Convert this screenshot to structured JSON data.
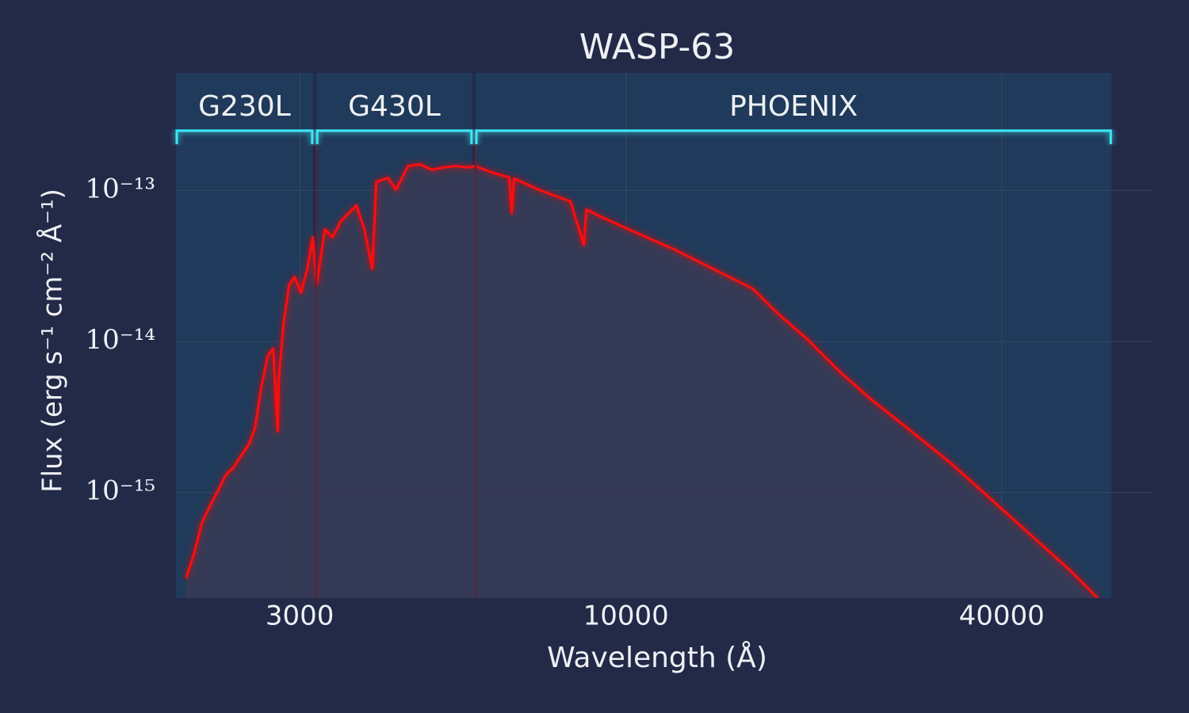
{
  "chart_data": {
    "type": "line",
    "title": "WASP-63",
    "x_label": "Wavelength (Å)",
    "y_label": "Flux (erg s⁻¹ cm⁻² Å⁻¹)",
    "xscale": "log",
    "yscale": "log",
    "grid": true,
    "color": "#ff1010",
    "xlim": [
      1900,
      70000
    ],
    "xticks": [
      3000,
      10000,
      40000
    ],
    "ylim": [
      2e-16,
      6e-13
    ],
    "yticks": [
      {
        "value": 1e-15,
        "label": "10⁻¹⁵"
      },
      {
        "value": 1e-14,
        "label": "10⁻¹⁴"
      },
      {
        "value": 1e-13,
        "label": "10⁻¹³"
      }
    ],
    "bands": [
      {
        "label": "G230L",
        "range": [
          1900,
          3150
        ]
      },
      {
        "label": "G430L",
        "range": [
          3190,
          5670
        ]
      },
      {
        "label": "PHOENIX",
        "range": [
          5740,
          60000
        ]
      }
    ],
    "x": [
      1972,
      2030,
      2090,
      2153,
      2216,
      2282,
      2350,
      2420,
      2491,
      2543,
      2603,
      2665,
      2720,
      2765,
      2776,
      2825,
      2884,
      2944,
      3013,
      3084,
      3148,
      3194,
      3290,
      3388,
      3488,
      3592,
      3698,
      3808,
      3921,
      3979,
      4157,
      4280,
      4473,
      4673,
      4884,
      5103,
      5332,
      5570,
      5736,
      6081,
      6500,
      6560,
      6620,
      7248,
      8148,
      8560,
      8638,
      9160,
      10297,
      11920,
      13800,
      15970,
      17430,
      19600,
      22030,
      24770,
      28670,
      33190,
      38420,
      44460,
      51470,
      57040
    ],
    "values": [
      2.71e-16,
      3.9e-16,
      6.3e-16,
      8.1e-16,
      1.02e-15,
      1.3e-15,
      1.47e-15,
      1.77e-15,
      2.11e-15,
      2.69e-15,
      4.93e-15,
      8e-15,
      9e-15,
      2.54e-15,
      5.6e-15,
      1.3e-14,
      2.37e-14,
      2.68e-14,
      2.1e-14,
      3.02e-14,
      4.9e-14,
      2.37e-14,
      5.53e-14,
      4.9e-14,
      6.24e-14,
      7.05e-14,
      7.95e-14,
      5.53e-14,
      3.02e-14,
      1.14e-13,
      1.21e-13,
      1.01e-13,
      1.45e-13,
      1.49e-13,
      1.37e-13,
      1.42e-13,
      1.45e-13,
      1.42e-13,
      1.45e-13,
      1.32e-13,
      1.22e-13,
      7.05e-14,
      1.2e-13,
      1.01e-13,
      8.44e-14,
      4.34e-14,
      7.48e-14,
      6.63e-14,
      5.33e-14,
      4.09e-14,
      3.02e-14,
      2.24e-14,
      1.56e-14,
      1.02e-14,
      6.28e-15,
      4.11e-15,
      2.54e-15,
      1.56e-15,
      9.08e-16,
      5.27e-16,
      3.06e-16,
      2e-16
    ]
  }
}
